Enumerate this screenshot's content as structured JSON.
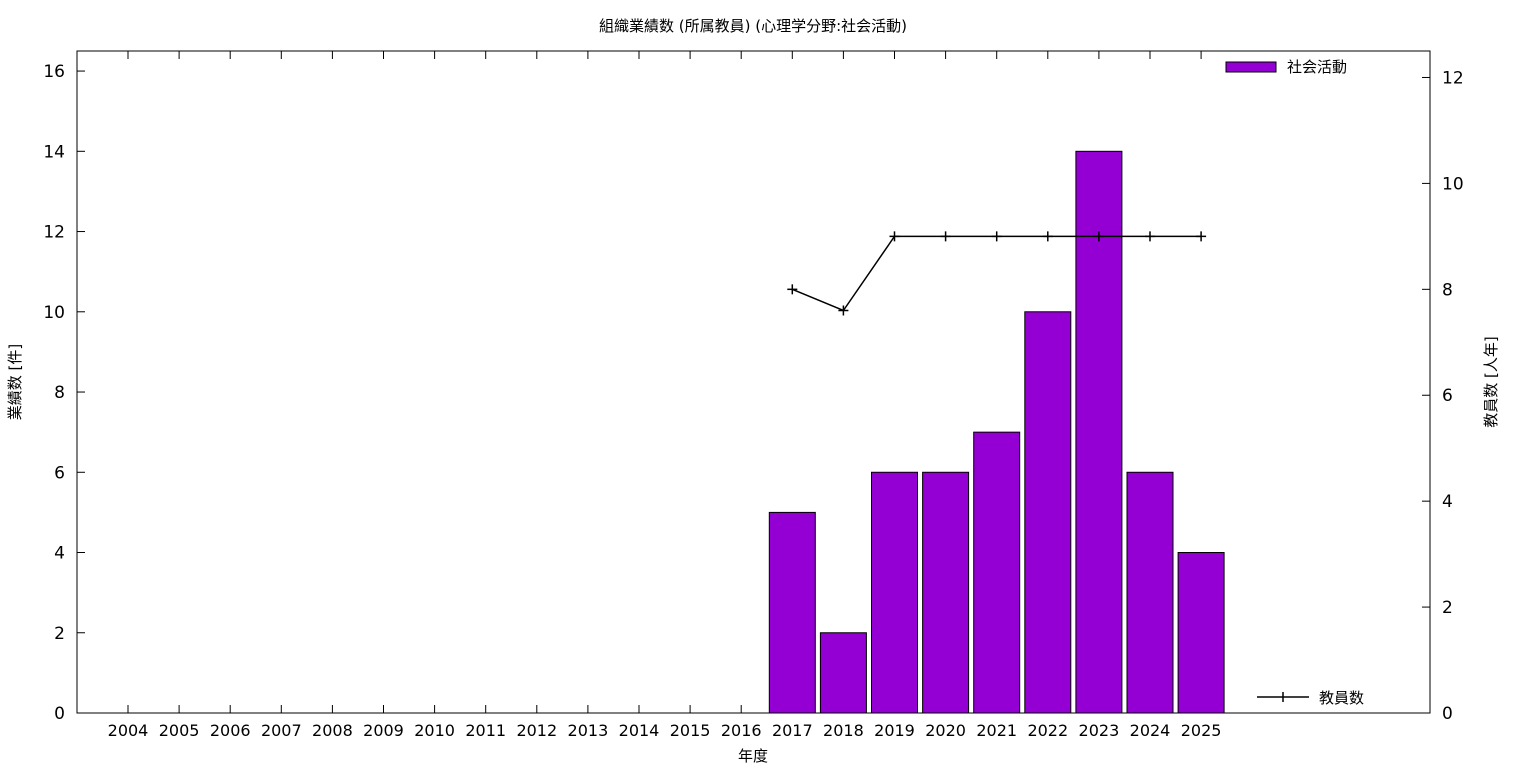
{
  "chart_data": {
    "type": "bar",
    "title": "組織業績数 (所属教員) (心理学分野:社会活動)",
    "xlabel": "年度",
    "ylabel": "業績数 [件]",
    "y2label": "教員数 [人年]",
    "categories": [
      "2004",
      "2005",
      "2006",
      "2007",
      "2008",
      "2009",
      "2010",
      "2011",
      "2012",
      "2013",
      "2014",
      "2015",
      "2016",
      "2017",
      "2018",
      "2019",
      "2020",
      "2021",
      "2022",
      "2023",
      "2024",
      "2025"
    ],
    "ylim": [
      0,
      16.5
    ],
    "y2lim": [
      0,
      12.5
    ],
    "yticks": [
      0,
      2,
      4,
      6,
      8,
      10,
      12,
      14,
      16
    ],
    "y2ticks": [
      0,
      2,
      4,
      6,
      8,
      10,
      12
    ],
    "grid": false,
    "series": [
      {
        "name": "社会活動",
        "type": "bar",
        "axis": "left",
        "color": "#9400d3",
        "values": [
          null,
          null,
          null,
          null,
          null,
          null,
          null,
          null,
          null,
          null,
          null,
          null,
          null,
          5,
          2,
          6,
          6,
          7,
          10,
          14,
          6,
          4
        ]
      },
      {
        "name": "教員数",
        "type": "line",
        "axis": "right",
        "color": "#000000",
        "values": [
          null,
          null,
          null,
          null,
          null,
          null,
          null,
          null,
          null,
          null,
          null,
          null,
          null,
          8,
          7.6,
          9,
          9,
          9,
          9,
          9,
          9,
          9
        ]
      }
    ],
    "legend": [
      {
        "label": "社会活動",
        "position": "top-right",
        "marker": "bar"
      },
      {
        "label": "教員数",
        "position": "bottom-right",
        "marker": "line"
      }
    ]
  }
}
